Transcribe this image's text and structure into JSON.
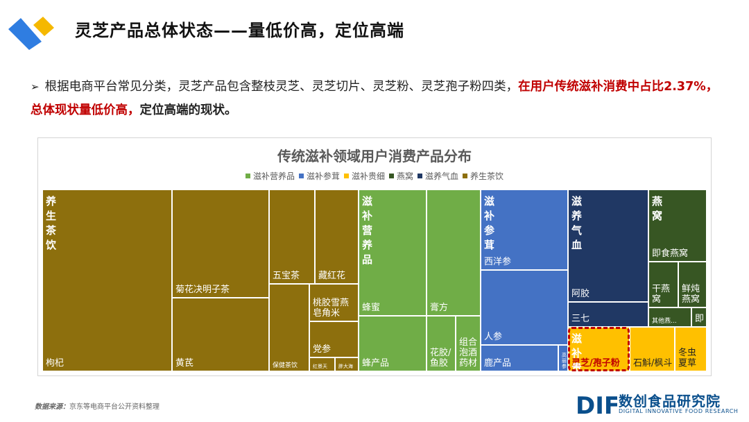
{
  "page": {
    "title": "灵芝产品总体状态——量低价高，定位高端",
    "bullet_prefix": "根据电商平台常见分类，灵芝产品包含整枝灵芝、灵芝切片、灵芝粉、灵芝孢子粉四类，",
    "bullet_highlight": "在用户传统滋补消费中占比2.37%，总体现状量低价高，",
    "bullet_tail": "定位高端的现状。",
    "source_label": "数据来源：",
    "source_text": "京东等电商平台公开资料整理",
    "brand_name": "数创食品研究院",
    "brand_sub": "DIGITAL INNOVATIVE FOOD RESEARCH",
    "brand_logo_text": "DIF"
  },
  "colors": {
    "green": "#70ad47",
    "blue": "#4472c4",
    "yellow": "#ffc000",
    "darkgreen": "#375623",
    "navy": "#203864",
    "olive": "#8d6f0d"
  },
  "chart_data": {
    "type": "treemap",
    "title": "传统滋补领域用户消费产品分布",
    "legend_position": "top",
    "legend": [
      {
        "name": "滋补营养品",
        "color": "#70ad47"
      },
      {
        "name": "滋补参茸",
        "color": "#4472c4"
      },
      {
        "name": "滋补贵细",
        "color": "#ffc000"
      },
      {
        "name": "燕窝",
        "color": "#375623"
      },
      {
        "name": "滋养气血",
        "color": "#203864"
      },
      {
        "name": "养生茶饮",
        "color": "#8d6f0d"
      }
    ],
    "groups": [
      {
        "name": "养生茶饮",
        "color": "#8d6f0d",
        "items": [
          {
            "name": "枸杞",
            "value": 14.0
          },
          {
            "name": "菊花决明子茶",
            "value": 7.0
          },
          {
            "name": "黄芪",
            "value": 5.0
          },
          {
            "name": "五宝茶",
            "value": 3.2
          },
          {
            "name": "藏红花",
            "value": 3.0
          },
          {
            "name": "保健茶饮",
            "value": 3.2
          },
          {
            "name": "桃胶雪燕皂角米",
            "value": 1.7
          },
          {
            "name": "党参",
            "value": 1.4
          },
          {
            "name": "红景天",
            "value": 0.9
          },
          {
            "name": "胖大海",
            "value": 0.8
          }
        ]
      },
      {
        "name": "滋补营养品",
        "color": "#70ad47",
        "items": [
          {
            "name": "蜂蜜",
            "value": 5.2
          },
          {
            "name": "膏方",
            "value": 4.3
          },
          {
            "name": "蜂产品",
            "value": 2.9
          },
          {
            "name": "花胶/鱼胶",
            "value": 1.3
          },
          {
            "name": "组合泡酒药材",
            "value": 1.5
          }
        ]
      },
      {
        "name": "滋补参茸",
        "color": "#4472c4",
        "items": [
          {
            "name": "西洋参",
            "value": 3.2
          },
          {
            "name": "人参",
            "value": 4.8
          },
          {
            "name": "鹿产品",
            "value": 2.6
          },
          {
            "name": "高丽参",
            "value": 0.3
          }
        ]
      },
      {
        "name": "滋养气血",
        "color": "#203864",
        "items": [
          {
            "name": "阿胶",
            "value": 4.6
          },
          {
            "name": "三七",
            "value": 1.1
          }
        ]
      },
      {
        "name": "燕窝",
        "color": "#375623",
        "items": [
          {
            "name": "即食燕窝",
            "value": 2.4
          },
          {
            "name": "干燕窝",
            "value": 1.3
          },
          {
            "name": "鲜炖燕窝",
            "value": 1.1
          },
          {
            "name": "其他燕...",
            "value": 0.8
          },
          {
            "name": "即",
            "value": 0.2
          }
        ]
      },
      {
        "name": "滋补贵细",
        "color": "#ffc000",
        "items": [
          {
            "name": "灵芝/孢子粉",
            "value": 2.37
          },
          {
            "name": "石斛/枫斗",
            "value": 1.7
          },
          {
            "name": "冬虫夏草",
            "value": 1.1
          }
        ]
      }
    ],
    "highlighted_item": "灵芝/孢子粉"
  }
}
